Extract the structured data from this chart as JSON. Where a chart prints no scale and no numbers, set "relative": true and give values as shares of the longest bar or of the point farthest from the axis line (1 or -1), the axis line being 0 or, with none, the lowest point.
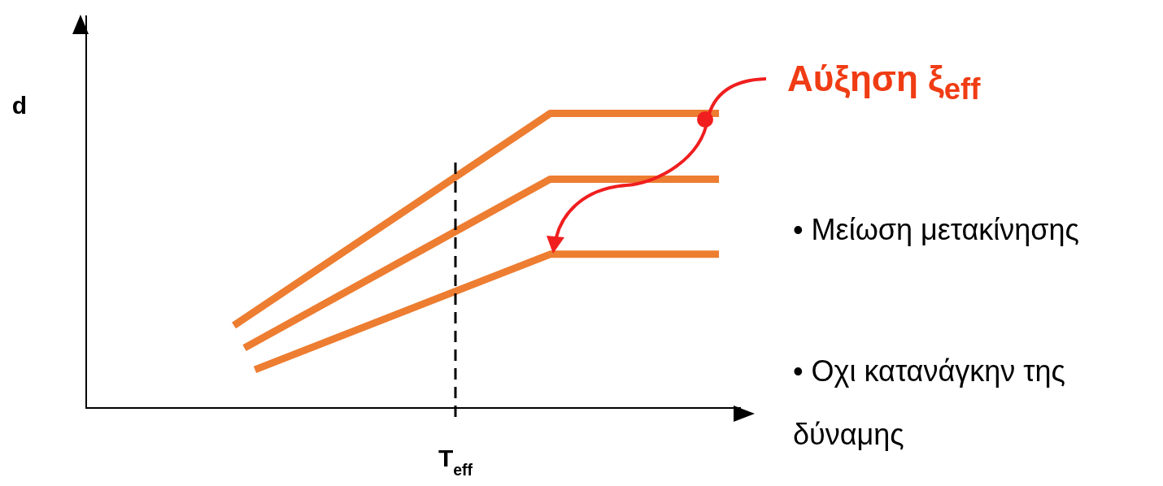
{
  "chart_data": {
    "type": "line",
    "relative": true,
    "ylabel": "d",
    "xlabel": "T$_{eff}$",
    "grid": false,
    "legend": false,
    "marker": "none",
    "line_style": "solid",
    "categories": [
      null,
      null,
      null,
      null,
      null,
      null,
      null,
      null,
      null,
      null,
      null,
      null,
      null,
      null,
      null,
      null,
      null,
      null,
      null,
      null,
      null,
      null,
      null,
      null,
      null,
      null,
      null,
      null,
      null,
      null,
      null,
      null,
      null,
      null,
      null,
      null,
      null,
      null,
      null,
      null,
      null,
      null,
      null,
      null,
      null,
      null,
      null,
      null,
      null,
      null,
      null,
      null,
      null,
      null,
      null,
      null,
      null,
      null,
      null,
      null,
      null,
      null,
      null
    ],
    "series": [
      {
        "color": "#ed7d31",
        "values": [
          null,
          null,
          null,
          null,
          null,
          null,
          null,
          null,
          null,
          null,
          null,
          null,
          null,
          null,
          0.28,
          null,
          null,
          null,
          null,
          null,
          null,
          null,
          null,
          null,
          null,
          null,
          null,
          null,
          null,
          null,
          null,
          null,
          null,
          null,
          null,
          null,
          null,
          null,
          null,
          null,
          null,
          null,
          null,
          null,
          1,
          null,
          null,
          null,
          null,
          null,
          null,
          null,
          null,
          null,
          null,
          null,
          null,
          null,
          null,
          null,
          1,
          null,
          null
        ]
      },
      {
        "color": "#ed7d31",
        "values": [
          null,
          null,
          null,
          null,
          null,
          null,
          null,
          null,
          null,
          null,
          null,
          null,
          null,
          null,
          null,
          0.204,
          null,
          null,
          null,
          null,
          null,
          null,
          null,
          null,
          null,
          null,
          null,
          null,
          null,
          null,
          null,
          null,
          null,
          null,
          null,
          null,
          null,
          null,
          null,
          null,
          null,
          null,
          null,
          null,
          0.777,
          null,
          null,
          null,
          null,
          null,
          null,
          null,
          null,
          null,
          null,
          null,
          null,
          null,
          null,
          null,
          0.777,
          null,
          null
        ]
      },
      {
        "color": "#ed7d31",
        "values": [
          null,
          null,
          null,
          null,
          null,
          null,
          null,
          null,
          null,
          null,
          null,
          null,
          null,
          null,
          null,
          null,
          0.13,
          null,
          null,
          null,
          null,
          null,
          null,
          null,
          null,
          null,
          null,
          null,
          null,
          null,
          null,
          null,
          null,
          null,
          null,
          null,
          null,
          null,
          null,
          null,
          null,
          null,
          null,
          null,
          0.522,
          null,
          null,
          null,
          null,
          null,
          null,
          null,
          null,
          null,
          null,
          null,
          null,
          null,
          null,
          null,
          0.522,
          null,
          null
        ]
      }
    ],
    "annotations": [
      "Αύξηση ξ$_{eff}$",
      "• Μείωση μετακίνησης",
      "• Οχι κατανάγκην της δύναμης"
    ]
  }
}
